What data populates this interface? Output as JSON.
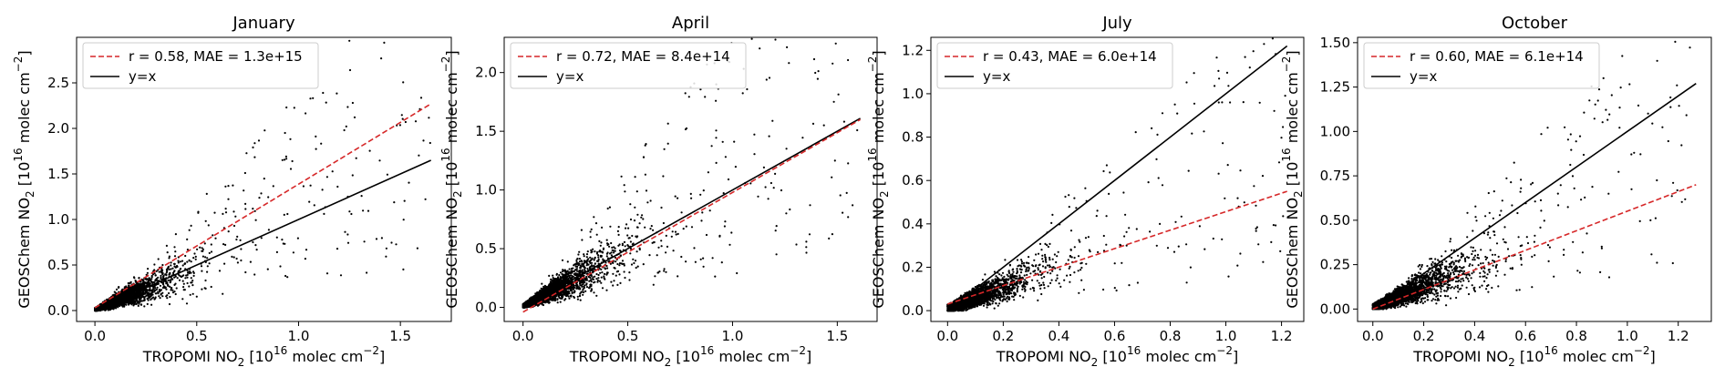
{
  "figure": {
    "panels": [
      {
        "title": "January",
        "xlabel": {
          "base": "TROPOMI NO",
          "sub": "2",
          "mid": " [10",
          "sup": "16",
          "end": " molec cm",
          "sup2": "−2",
          "close": "]"
        },
        "ylabel": {
          "base": "GEOSChem NO",
          "sub": "2",
          "mid": " [10",
          "sup": "16",
          "end": " molec cm",
          "sup2": "−2",
          "close": "]"
        },
        "legend": [
          "r = 0.58, MAE = 1.3e+15",
          "y=x"
        ]
      },
      {
        "title": "April",
        "xlabel": {
          "base": "TROPOMI NO",
          "sub": "2",
          "mid": " [10",
          "sup": "16",
          "end": " molec cm",
          "sup2": "−2",
          "close": "]"
        },
        "ylabel": {
          "base": "GEOSChem NO",
          "sub": "2",
          "mid": " [10",
          "sup": "16",
          "end": " molec cm",
          "sup2": "−2",
          "close": "]"
        },
        "legend": [
          "r = 0.72, MAE = 8.4e+14",
          "y=x"
        ]
      },
      {
        "title": "July",
        "xlabel": {
          "base": "TROPOMI NO",
          "sub": "2",
          "mid": " [10",
          "sup": "16",
          "end": " molec cm",
          "sup2": "−2",
          "close": "]"
        },
        "ylabel": {
          "base": "GEOSChem NO",
          "sub": "2",
          "mid": " [10",
          "sup": "16",
          "end": " molec cm",
          "sup2": "−2",
          "close": "]"
        },
        "legend": [
          "r = 0.43, MAE = 6.0e+14",
          "y=x"
        ]
      },
      {
        "title": "October",
        "xlabel": {
          "base": "TROPOMI NO",
          "sub": "2",
          "mid": " [10",
          "sup": "16",
          "end": " molec cm",
          "sup2": "−2",
          "close": "]"
        },
        "ylabel": {
          "base": "GEOSChem NO",
          "sub": "2",
          "mid": " [10",
          "sup": "16",
          "end": " molec cm",
          "sup2": "−2",
          "close": "]"
        },
        "legend": [
          "r = 0.60, MAE = 6.1e+14",
          "y=x"
        ]
      }
    ]
  },
  "chart_data": [
    {
      "type": "scatter",
      "title": "January",
      "xlim": [
        -0.09,
        1.75
      ],
      "ylim": [
        -0.12,
        3.0
      ],
      "xticks": [
        0.0,
        0.5,
        1.0,
        1.5
      ],
      "xtick_labels": [
        "0.0",
        "0.5",
        "1.0",
        "1.5"
      ],
      "yticks": [
        0.0,
        0.5,
        1.0,
        1.5,
        2.0,
        2.5
      ],
      "ytick_labels": [
        "0.0",
        "0.5",
        "1.0",
        "1.5",
        "2.0",
        "2.5"
      ],
      "fit_line": {
        "x": [
          0.0,
          1.65
        ],
        "y": [
          0.03,
          2.27
        ],
        "color": "#d62728",
        "style": "dashed"
      },
      "identity_line": {
        "x": [
          0.0,
          1.65
        ],
        "y": [
          0.0,
          1.65
        ],
        "color": "#000000"
      },
      "scatter_profile": {
        "n": 5200,
        "x_scale": 0.09,
        "x_max": 1.65,
        "slope": 0.95,
        "spread": 0.45,
        "outlier_frac": 0.04
      },
      "grid": false,
      "legend_position": "upper-left"
    },
    {
      "type": "scatter",
      "title": "April",
      "xlim": [
        -0.09,
        1.69
      ],
      "ylim": [
        -0.12,
        2.3
      ],
      "xticks": [
        0.0,
        0.5,
        1.0,
        1.5
      ],
      "xtick_labels": [
        "0.0",
        "0.5",
        "1.0",
        "1.5"
      ],
      "yticks": [
        0.0,
        0.5,
        1.0,
        1.5,
        2.0
      ],
      "ytick_labels": [
        "0.0",
        "0.5",
        "1.0",
        "1.5",
        "2.0"
      ],
      "fit_line": {
        "x": [
          0.0,
          1.61
        ],
        "y": [
          -0.04,
          1.6
        ],
        "color": "#d62728",
        "style": "dashed"
      },
      "identity_line": {
        "x": [
          0.0,
          1.61
        ],
        "y": [
          0.0,
          1.61
        ],
        "color": "#000000"
      },
      "scatter_profile": {
        "n": 4200,
        "x_scale": 0.12,
        "x_max": 1.6,
        "slope": 0.95,
        "spread": 0.4,
        "outlier_frac": 0.05
      },
      "grid": false,
      "legend_position": "upper-left"
    },
    {
      "type": "scatter",
      "title": "July",
      "xlim": [
        -0.06,
        1.28
      ],
      "ylim": [
        -0.05,
        1.26
      ],
      "xticks": [
        0.0,
        0.2,
        0.4,
        0.6,
        0.8,
        1.0,
        1.2
      ],
      "xtick_labels": [
        "0.0",
        "0.2",
        "0.4",
        "0.6",
        "0.8",
        "1.0",
        "1.2"
      ],
      "yticks": [
        0.0,
        0.2,
        0.4,
        0.6,
        0.8,
        1.0,
        1.2
      ],
      "ytick_labels": [
        "0.0",
        "0.2",
        "0.4",
        "0.6",
        "0.8",
        "1.0",
        "1.2"
      ],
      "fit_line": {
        "x": [
          0.0,
          1.22
        ],
        "y": [
          0.03,
          0.55
        ],
        "color": "#d62728",
        "style": "dashed"
      },
      "identity_line": {
        "x": [
          0.0,
          1.22
        ],
        "y": [
          0.0,
          1.22
        ],
        "color": "#000000"
      },
      "scatter_profile": {
        "n": 4200,
        "x_scale": 0.08,
        "x_max": 1.22,
        "slope": 0.5,
        "spread": 0.45,
        "outlier_frac": 0.04
      },
      "grid": false,
      "legend_position": "upper-left"
    },
    {
      "type": "scatter",
      "title": "October",
      "xlim": [
        -0.06,
        1.33
      ],
      "ylim": [
        -0.07,
        1.53
      ],
      "xticks": [
        0.0,
        0.2,
        0.4,
        0.6,
        0.8,
        1.0,
        1.2
      ],
      "xtick_labels": [
        "0.0",
        "0.2",
        "0.4",
        "0.6",
        "0.8",
        "1.0",
        "1.2"
      ],
      "yticks": [
        0.0,
        0.25,
        0.5,
        0.75,
        1.0,
        1.25,
        1.5
      ],
      "ytick_labels": [
        "0.00",
        "0.25",
        "0.50",
        "0.75",
        "1.00",
        "1.25",
        "1.50"
      ],
      "fit_line": {
        "x": [
          0.0,
          1.27
        ],
        "y": [
          0.0,
          0.7
        ],
        "color": "#d62728",
        "style": "dashed"
      },
      "identity_line": {
        "x": [
          0.0,
          1.27
        ],
        "y": [
          0.0,
          1.27
        ],
        "color": "#000000"
      },
      "scatter_profile": {
        "n": 4200,
        "x_scale": 0.1,
        "x_max": 1.27,
        "slope": 0.6,
        "spread": 0.45,
        "outlier_frac": 0.04
      },
      "grid": false,
      "legend_position": "upper-left"
    }
  ]
}
